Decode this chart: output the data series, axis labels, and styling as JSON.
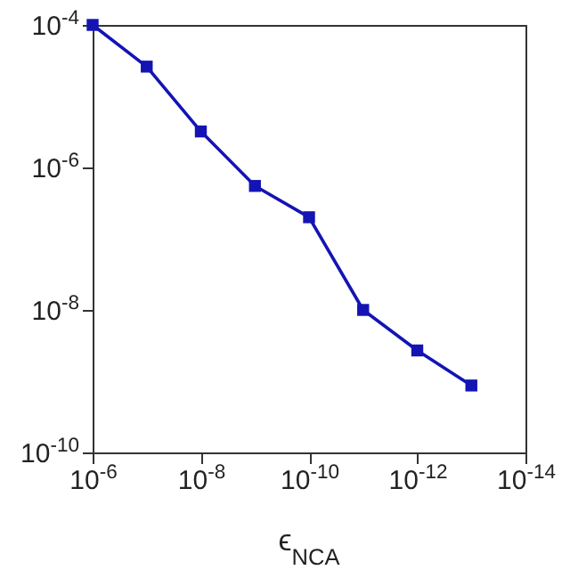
{
  "chart_data": {
    "type": "line",
    "xlabel": "ϵ$_{NCA}$",
    "x": [
      1e-06,
      1e-07,
      1e-08,
      1e-09,
      1e-10,
      1e-11,
      1e-12,
      1e-13
    ],
    "series": [
      {
        "color": "#1414b4",
        "values": [
          0.0001,
          2.6e-05,
          3.2e-06,
          5.5e-07,
          2e-07,
          1e-08,
          2.7e-09,
          8.7e-10
        ]
      }
    ],
    "log": "xy",
    "marker": "square",
    "line_style": "solid",
    "grid": false,
    "xlim": [
      1e-06,
      1e-14
    ],
    "ylim": [
      1e-10,
      0.0001
    ],
    "xticks": [
      {
        "value": 1e-06,
        "label": "10$^{-6}$"
      },
      {
        "value": 1e-08,
        "label": "10$^{-8}$"
      },
      {
        "value": 1e-10,
        "label": "10$^{-10}$"
      },
      {
        "value": 1e-12,
        "label": "10$^{-12}$"
      },
      {
        "value": 1e-14,
        "label": "10$^{-14}$"
      }
    ],
    "yticks": [
      {
        "value": 1e-10,
        "label": "10$^{-10}$"
      },
      {
        "value": 1e-08,
        "label": "10$^{-8}$"
      },
      {
        "value": 1e-06,
        "label": "10$^{-6}$"
      },
      {
        "value": 0.0001,
        "label": "10$^{-4}$"
      }
    ]
  }
}
